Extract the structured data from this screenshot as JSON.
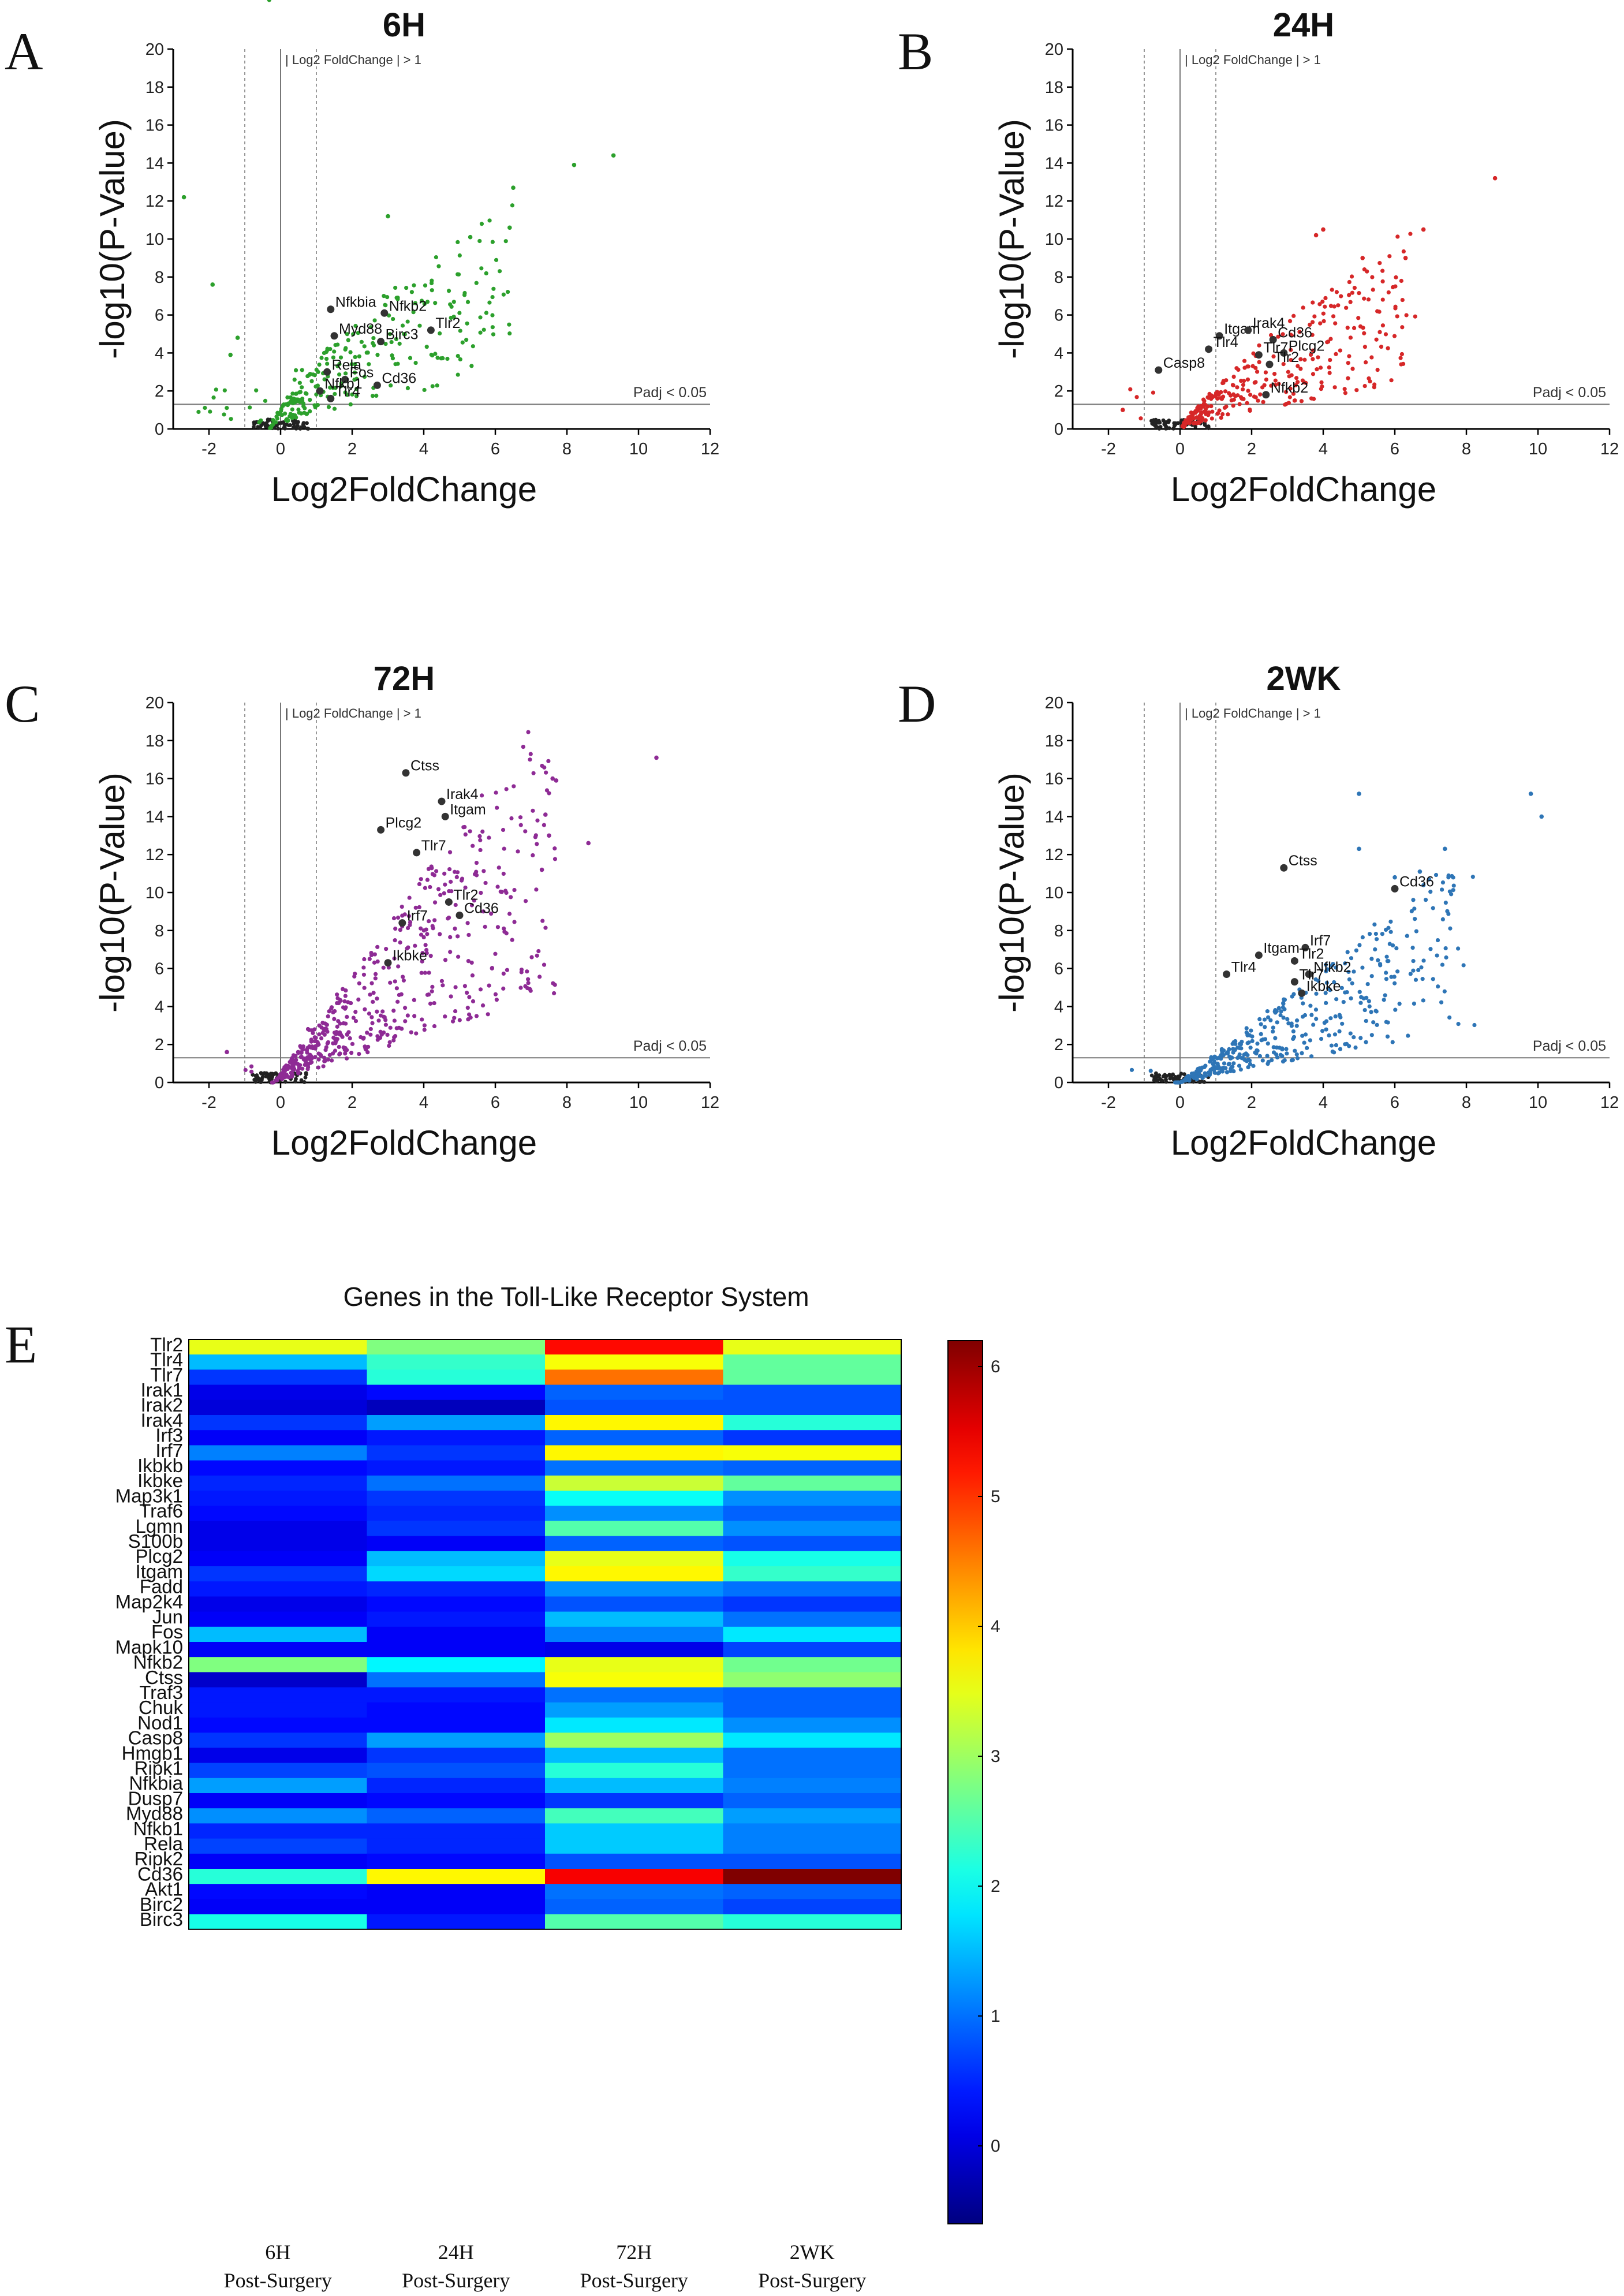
{
  "chart_data": [
    {
      "type": "scatter",
      "panel": "A",
      "title": "6H",
      "xlabel": "Log2FoldChange",
      "ylabel": "-log10(P-Value)",
      "xlim": [
        -3,
        12
      ],
      "ylim": [
        0,
        20
      ],
      "xticks": [
        -2,
        0,
        2,
        4,
        6,
        8,
        10,
        12
      ],
      "yticks": [
        0,
        2,
        4,
        6,
        8,
        10,
        12,
        14,
        16,
        18,
        20
      ],
      "threshold_label": "| Log2 FoldChange | > 1",
      "padj_label": "Padj < 0.05",
      "color": "#2ca02c",
      "seed": 11,
      "highlight": [
        {
          "label": "Nfkbia",
          "x": 1.4,
          "y": 6.3
        },
        {
          "label": "Nfkb2",
          "x": 2.9,
          "y": 6.1
        },
        {
          "label": "Tlr2",
          "x": 4.2,
          "y": 5.2
        },
        {
          "label": "Myd88",
          "x": 1.5,
          "y": 4.9
        },
        {
          "label": "Birc3",
          "x": 2.8,
          "y": 4.6
        },
        {
          "label": "Rela",
          "x": 1.3,
          "y": 3.0
        },
        {
          "label": "Fos",
          "x": 1.8,
          "y": 2.6
        },
        {
          "label": "Cd36",
          "x": 2.7,
          "y": 2.3
        },
        {
          "label": "Nfkb1",
          "x": 1.1,
          "y": 2.0
        },
        {
          "label": "Tlr4",
          "x": 1.4,
          "y": 1.6
        }
      ]
    },
    {
      "type": "scatter",
      "panel": "B",
      "title": "24H",
      "xlabel": "Log2FoldChange",
      "ylabel": "-log10(P-Value)",
      "xlim": [
        -3,
        12
      ],
      "ylim": [
        0,
        20
      ],
      "xticks": [
        -2,
        0,
        2,
        4,
        6,
        8,
        10,
        12
      ],
      "yticks": [
        0,
        2,
        4,
        6,
        8,
        10,
        12,
        14,
        16,
        18,
        20
      ],
      "threshold_label": "| Log2 FoldChange | > 1",
      "padj_label": "Padj < 0.05",
      "color": "#d62728",
      "seed": 23,
      "highlight": [
        {
          "label": "Itgam",
          "x": 1.1,
          "y": 4.9
        },
        {
          "label": "Irak4",
          "x": 1.9,
          "y": 5.2
        },
        {
          "label": "Tlr4",
          "x": 0.8,
          "y": 4.2
        },
        {
          "label": "Cd36",
          "x": 2.6,
          "y": 4.7
        },
        {
          "label": "Tlr7",
          "x": 2.2,
          "y": 3.9
        },
        {
          "label": "Plcg2",
          "x": 2.9,
          "y": 4.0
        },
        {
          "label": "Tlr2",
          "x": 2.5,
          "y": 3.4
        },
        {
          "label": "Casp8",
          "x": -0.6,
          "y": 3.1
        },
        {
          "label": "Nfkb2",
          "x": 2.4,
          "y": 1.8
        }
      ]
    },
    {
      "type": "scatter",
      "panel": "C",
      "title": "72H",
      "xlabel": "Log2FoldChange",
      "ylabel": "-log10(P-Value)",
      "xlim": [
        -3,
        12
      ],
      "ylim": [
        0,
        20
      ],
      "xticks": [
        -2,
        0,
        2,
        4,
        6,
        8,
        10,
        12
      ],
      "yticks": [
        0,
        2,
        4,
        6,
        8,
        10,
        12,
        14,
        16,
        18,
        20
      ],
      "threshold_label": "| Log2 FoldChange | > 1",
      "padj_label": "Padj < 0.05",
      "color": "#8e2b95",
      "seed": 37,
      "highlight": [
        {
          "label": "Ctss",
          "x": 3.5,
          "y": 16.3
        },
        {
          "label": "Irak4",
          "x": 4.5,
          "y": 14.8
        },
        {
          "label": "Itgam",
          "x": 4.6,
          "y": 14.0
        },
        {
          "label": "Plcg2",
          "x": 2.8,
          "y": 13.3
        },
        {
          "label": "Tlr7",
          "x": 3.8,
          "y": 12.1
        },
        {
          "label": "Tlr2",
          "x": 4.7,
          "y": 9.5
        },
        {
          "label": "Cd36",
          "x": 5.0,
          "y": 8.8
        },
        {
          "label": "Irf7",
          "x": 3.4,
          "y": 8.4
        },
        {
          "label": "Ikbke",
          "x": 3.0,
          "y": 6.3
        }
      ]
    },
    {
      "type": "scatter",
      "panel": "D",
      "title": "2WK",
      "xlabel": "Log2FoldChange",
      "ylabel": "-log10(P-Value)",
      "xlim": [
        -3,
        12
      ],
      "ylim": [
        0,
        20
      ],
      "xticks": [
        -2,
        0,
        2,
        4,
        6,
        8,
        10,
        12
      ],
      "yticks": [
        0,
        2,
        4,
        6,
        8,
        10,
        12,
        14,
        16,
        18,
        20
      ],
      "threshold_label": "| Log2 FoldChange | > 1",
      "padj_label": "Padj < 0.05",
      "color": "#2e75b6",
      "seed": 53,
      "highlight": [
        {
          "label": "Ctss",
          "x": 2.9,
          "y": 11.3
        },
        {
          "label": "Cd36",
          "x": 6.0,
          "y": 10.2
        },
        {
          "label": "Irf7",
          "x": 3.5,
          "y": 7.1
        },
        {
          "label": "Itgam",
          "x": 2.2,
          "y": 6.7
        },
        {
          "label": "Tlr2",
          "x": 3.2,
          "y": 6.4
        },
        {
          "label": "Nfkb2",
          "x": 3.6,
          "y": 5.7
        },
        {
          "label": "Tlr4",
          "x": 1.3,
          "y": 5.7
        },
        {
          "label": "Tlr7",
          "x": 3.2,
          "y": 5.3
        },
        {
          "label": "Ikbke",
          "x": 3.4,
          "y": 4.7
        }
      ]
    },
    {
      "type": "heatmap",
      "panel": "E",
      "title": "Genes in the Toll-Like Receptor System",
      "columns": [
        {
          "line1": "6H",
          "line2": "Post-Surgery"
        },
        {
          "line1": "24H",
          "line2": "Post-Surgery"
        },
        {
          "line1": "72H",
          "line2": "Post-Surgery"
        },
        {
          "line1": "2WK",
          "line2": "Post-Surgery"
        }
      ],
      "rows": [
        "Tlr2",
        "Tlr4",
        "Tlr7",
        "Irak1",
        "Irak2",
        "Irak4",
        "Irf3",
        "Irf7",
        "Ikbkb",
        "Ikbke",
        "Map3k1",
        "Traf6",
        "Lgmn",
        "S100b",
        "Plcg2",
        "Itgam",
        "Fadd",
        "Map2k4",
        "Jun",
        "Fos",
        "Mapk10",
        "Nfkb2",
        "Ctss",
        "Traf3",
        "Chuk",
        "Nod1",
        "Casp8",
        "Hmgb1",
        "Ripk1",
        "Nfkbia",
        "Dusp7",
        "Myd88",
        "Nfkb1",
        "Rela",
        "Ripk2",
        "Cd36",
        "Akt1",
        "Birc2",
        "Birc3"
      ],
      "values": [
        [
          3.5,
          2.8,
          5.3,
          3.5
        ],
        [
          1.5,
          2.3,
          3.6,
          2.6
        ],
        [
          0.6,
          2.2,
          4.6,
          2.6
        ],
        [
          0.1,
          0.3,
          0.9,
          0.8
        ],
        [
          0.0,
          -0.2,
          0.8,
          0.8
        ],
        [
          0.6,
          1.3,
          3.7,
          2.2
        ],
        [
          0.2,
          0.4,
          0.9,
          0.6
        ],
        [
          1.1,
          0.6,
          3.7,
          3.6
        ],
        [
          0.3,
          0.4,
          1.0,
          0.9
        ],
        [
          0.5,
          1.0,
          3.3,
          2.6
        ],
        [
          0.4,
          0.6,
          2.0,
          1.2
        ],
        [
          0.3,
          0.5,
          1.2,
          0.9
        ],
        [
          0.1,
          0.6,
          2.5,
          1.2
        ],
        [
          0.1,
          0.2,
          0.9,
          0.8
        ],
        [
          0.2,
          1.5,
          3.5,
          2.1
        ],
        [
          0.6,
          1.7,
          3.7,
          2.3
        ],
        [
          0.4,
          0.5,
          1.2,
          1.0
        ],
        [
          0.1,
          0.3,
          0.8,
          0.6
        ],
        [
          0.2,
          0.4,
          1.5,
          1.0
        ],
        [
          1.5,
          0.2,
          1.1,
          1.8
        ],
        [
          0.2,
          0.2,
          0.1,
          0.7
        ],
        [
          2.8,
          1.9,
          3.5,
          2.7
        ],
        [
          -0.1,
          1.0,
          3.6,
          2.9
        ],
        [
          0.4,
          0.4,
          1.0,
          0.9
        ],
        [
          0.4,
          0.3,
          1.3,
          0.9
        ],
        [
          0.3,
          0.3,
          1.8,
          1.2
        ],
        [
          0.6,
          1.3,
          3.0,
          1.8
        ],
        [
          0.1,
          0.6,
          1.5,
          1.0
        ],
        [
          0.7,
          0.8,
          2.2,
          1.0
        ],
        [
          1.3,
          0.5,
          1.5,
          1.1
        ],
        [
          0.2,
          0.3,
          0.6,
          0.9
        ],
        [
          1.2,
          0.9,
          2.4,
          1.3
        ],
        [
          0.5,
          0.5,
          1.6,
          1.1
        ],
        [
          0.7,
          0.5,
          1.6,
          1.1
        ],
        [
          0.2,
          0.3,
          0.8,
          0.8
        ],
        [
          2.2,
          3.7,
          5.4,
          6.2
        ],
        [
          0.3,
          0.2,
          1.0,
          0.9
        ],
        [
          0.2,
          0.2,
          0.9,
          0.7
        ],
        [
          2.1,
          0.4,
          2.5,
          2.2
        ]
      ],
      "colorbar": {
        "min": -0.6,
        "max": 6.2,
        "ticks": [
          0,
          1,
          2,
          3,
          4,
          5,
          6
        ]
      }
    }
  ],
  "panel_letters": [
    "A",
    "B",
    "C",
    "D",
    "E"
  ]
}
